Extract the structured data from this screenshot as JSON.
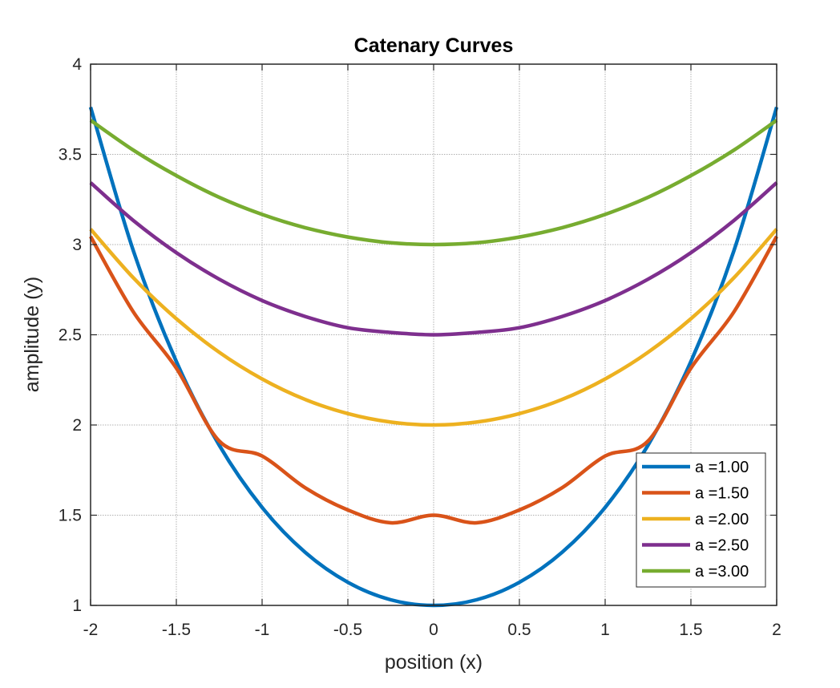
{
  "chart_data": {
    "type": "line",
    "title": "Catenary Curves",
    "xlabel": "position (x)",
    "ylabel": "amplitude (y)",
    "xlim": [
      -2,
      2
    ],
    "ylim": [
      1,
      4
    ],
    "xticks": [
      -2,
      -1.5,
      -1,
      -0.5,
      0,
      0.5,
      1,
      1.5,
      2
    ],
    "xtick_labels": [
      "-2",
      "-1.5",
      "-1",
      "-0.5",
      "0",
      "0.5",
      "1",
      "1.5",
      "2"
    ],
    "yticks": [
      1,
      1.5,
      2,
      2.5,
      3,
      3.5,
      4
    ],
    "ytick_labels": [
      "1",
      "1.5",
      "2",
      "2.5",
      "3",
      "3.5",
      "4"
    ],
    "grid": true,
    "legend_position": "bottom-right",
    "x": [
      -2,
      -1.75,
      -1.5,
      -1.25,
      -1,
      -0.75,
      -0.5,
      -0.25,
      0,
      0.25,
      0.5,
      0.75,
      1,
      1.25,
      1.5,
      1.75,
      2
    ],
    "series": [
      {
        "name": "a =1.00",
        "color": "#0072BD",
        "values": [
          3.762,
          2.964,
          2.352,
          1.888,
          1.543,
          1.295,
          1.128,
          1.031,
          1.0,
          1.031,
          1.128,
          1.295,
          1.543,
          1.888,
          2.352,
          2.964,
          3.762
        ]
      },
      {
        "name": "a =1.50",
        "color": "#D95319",
        "values": [
          3.045,
          2.626,
          2.315,
          1.911,
          1.828,
          1.653,
          1.529,
          1.458,
          1.5,
          1.458,
          1.529,
          1.653,
          1.828,
          1.911,
          2.315,
          2.626,
          3.045
        ]
      },
      {
        "name": "a =2.00",
        "color": "#EDB120",
        "values": [
          3.086,
          2.815,
          2.589,
          2.403,
          2.255,
          2.142,
          2.063,
          2.016,
          2.0,
          2.016,
          2.063,
          2.142,
          2.255,
          2.403,
          2.589,
          2.815,
          3.086
        ]
      },
      {
        "name": "a =2.50",
        "color": "#7E2F8E",
        "values": [
          3.343,
          3.133,
          2.955,
          2.808,
          2.69,
          2.602,
          2.539,
          2.513,
          2.5,
          2.513,
          2.539,
          2.602,
          2.69,
          2.808,
          2.955,
          3.133,
          3.343
        ]
      },
      {
        "name": "a =3.00",
        "color": "#77AC30",
        "values": [
          3.689,
          3.523,
          3.382,
          3.262,
          3.167,
          3.094,
          3.042,
          3.01,
          3.0,
          3.01,
          3.042,
          3.094,
          3.167,
          3.262,
          3.382,
          3.523,
          3.689
        ]
      }
    ]
  }
}
